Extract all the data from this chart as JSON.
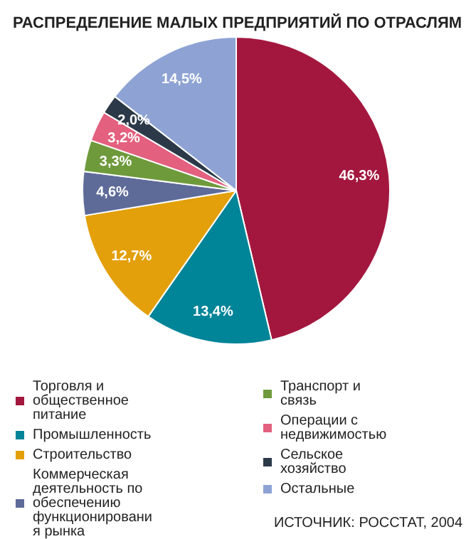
{
  "chart_data": {
    "type": "pie",
    "title": "РАСПРЕДЕЛЕНИЕ МАЛЫХ ПРЕДПРИЯТИЙ ПО ОТРАСЛЯМ",
    "categories": [
      "Торговля и общественное питание",
      "Промышленность",
      "Строительство",
      "Коммерческая деятельность по обеспечению функционирования рынка",
      "Транспорт и связь",
      "Операции с недвижимостью",
      "Сельское хозяйство",
      "Остальные"
    ],
    "values": [
      46.3,
      13.4,
      12.7,
      4.6,
      3.3,
      3.2,
      2.0,
      14.5
    ],
    "colors": [
      "#a3173f",
      "#008498",
      "#e3a00b",
      "#5e6b99",
      "#6f9a3c",
      "#e3607e",
      "#2b3948",
      "#8ea3d4"
    ],
    "value_labels": [
      "46,3%",
      "13,4%",
      "12,7%",
      "4,6%",
      "3,3%",
      "3,2%",
      "2,0%",
      "14,5%"
    ],
    "legend": "bottom",
    "annotations": [
      "ИСТОЧНИК: РОССТАТ, 2004"
    ]
  }
}
